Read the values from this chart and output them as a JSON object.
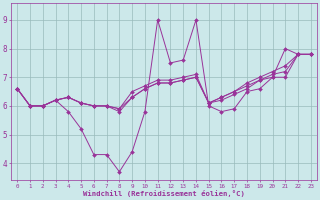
{
  "xlabel": "Windchill (Refroidissement éolien,°C)",
  "xlim": [
    -0.5,
    23.5
  ],
  "ylim": [
    3.4,
    9.6
  ],
  "xticks": [
    0,
    1,
    2,
    3,
    4,
    5,
    6,
    7,
    8,
    9,
    10,
    11,
    12,
    13,
    14,
    15,
    16,
    17,
    18,
    19,
    20,
    21,
    22,
    23
  ],
  "yticks": [
    4,
    5,
    6,
    7,
    8,
    9
  ],
  "bg_color": "#cce8ea",
  "line_color": "#993399",
  "grid_color": "#99bbbb",
  "series": [
    [
      6.6,
      6.0,
      6.0,
      6.2,
      5.8,
      5.2,
      4.3,
      4.3,
      3.7,
      4.4,
      5.8,
      9.0,
      7.5,
      7.6,
      9.0,
      6.0,
      5.8,
      5.9,
      6.5,
      6.6,
      7.0,
      8.0,
      7.8,
      7.8
    ],
    [
      6.6,
      6.0,
      6.0,
      6.2,
      6.3,
      6.1,
      6.0,
      6.0,
      5.8,
      6.3,
      6.6,
      6.8,
      6.8,
      6.9,
      7.0,
      6.1,
      6.3,
      6.5,
      6.7,
      6.9,
      7.0,
      7.0,
      7.8,
      7.8
    ],
    [
      6.6,
      6.0,
      6.0,
      6.2,
      6.3,
      6.1,
      6.0,
      6.0,
      5.9,
      6.5,
      6.7,
      6.9,
      6.9,
      7.0,
      7.1,
      6.1,
      6.3,
      6.5,
      6.8,
      7.0,
      7.2,
      7.4,
      7.8,
      7.8
    ],
    [
      6.6,
      6.0,
      6.0,
      6.2,
      6.3,
      6.1,
      6.0,
      6.0,
      5.9,
      6.3,
      6.6,
      6.8,
      6.8,
      6.9,
      7.0,
      6.1,
      6.2,
      6.4,
      6.6,
      6.9,
      7.1,
      7.2,
      7.8,
      7.8
    ]
  ]
}
